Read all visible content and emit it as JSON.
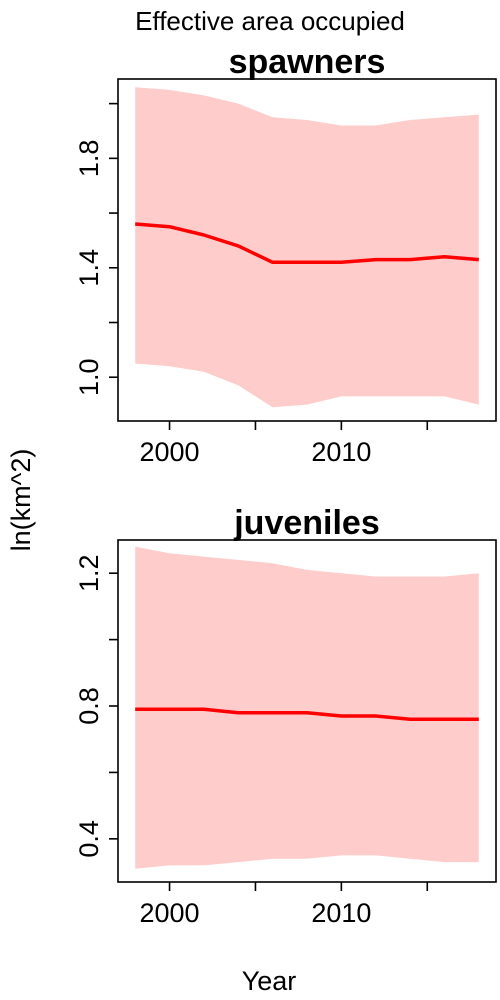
{
  "title": "Effective area occupied",
  "xlabel": "Year",
  "ylabel": "ln(km^2)",
  "chart_data": [
    {
      "type": "line",
      "title": "spawners",
      "xlim": [
        1997,
        2019
      ],
      "ylim": [
        0.84,
        2.09
      ],
      "x_ticks": [
        2000,
        2005,
        2010,
        2015
      ],
      "x_tick_labels": [
        "2000",
        "",
        "2010",
        ""
      ],
      "y_ticks": [
        0.8,
        1.0,
        1.2,
        1.4,
        1.6,
        1.8,
        2.0
      ],
      "y_tick_labels": [
        "",
        "1.0",
        "",
        "1.4",
        "",
        "1.8",
        ""
      ],
      "series": [
        {
          "x": [
            1998,
            2000,
            2002,
            2004,
            2006,
            2008,
            2010,
            2012,
            2014,
            2016,
            2018
          ],
          "y": [
            1.56,
            1.55,
            1.52,
            1.48,
            1.42,
            1.42,
            1.42,
            1.43,
            1.43,
            1.44,
            1.43
          ],
          "lower": [
            1.05,
            1.04,
            1.02,
            0.97,
            0.89,
            0.9,
            0.93,
            0.93,
            0.93,
            0.93,
            0.9
          ],
          "upper": [
            2.06,
            2.05,
            2.03,
            2.0,
            1.95,
            1.94,
            1.92,
            1.92,
            1.94,
            1.95,
            1.96
          ]
        }
      ],
      "line_color": "#ff0000",
      "band_color": "#ffcccc"
    },
    {
      "type": "line",
      "title": "juveniles",
      "xlim": [
        1997,
        2019
      ],
      "ylim": [
        0.27,
        1.3
      ],
      "x_ticks": [
        2000,
        2005,
        2010,
        2015
      ],
      "x_tick_labels": [
        "2000",
        "",
        "2010",
        ""
      ],
      "y_ticks": [
        0.4,
        0.6,
        0.8,
        1.0,
        1.2
      ],
      "y_tick_labels": [
        "0.4",
        "",
        "0.8",
        "",
        "1.2"
      ],
      "series": [
        {
          "x": [
            1998,
            2000,
            2002,
            2004,
            2006,
            2008,
            2010,
            2012,
            2014,
            2016,
            2018
          ],
          "y": [
            0.79,
            0.79,
            0.79,
            0.78,
            0.78,
            0.78,
            0.77,
            0.77,
            0.76,
            0.76,
            0.76
          ],
          "lower": [
            0.31,
            0.32,
            0.32,
            0.33,
            0.34,
            0.34,
            0.35,
            0.35,
            0.34,
            0.33,
            0.33
          ],
          "upper": [
            1.28,
            1.26,
            1.25,
            1.24,
            1.23,
            1.21,
            1.2,
            1.19,
            1.19,
            1.19,
            1.2
          ]
        }
      ],
      "line_color": "#ff0000",
      "band_color": "#ffcccc"
    }
  ]
}
